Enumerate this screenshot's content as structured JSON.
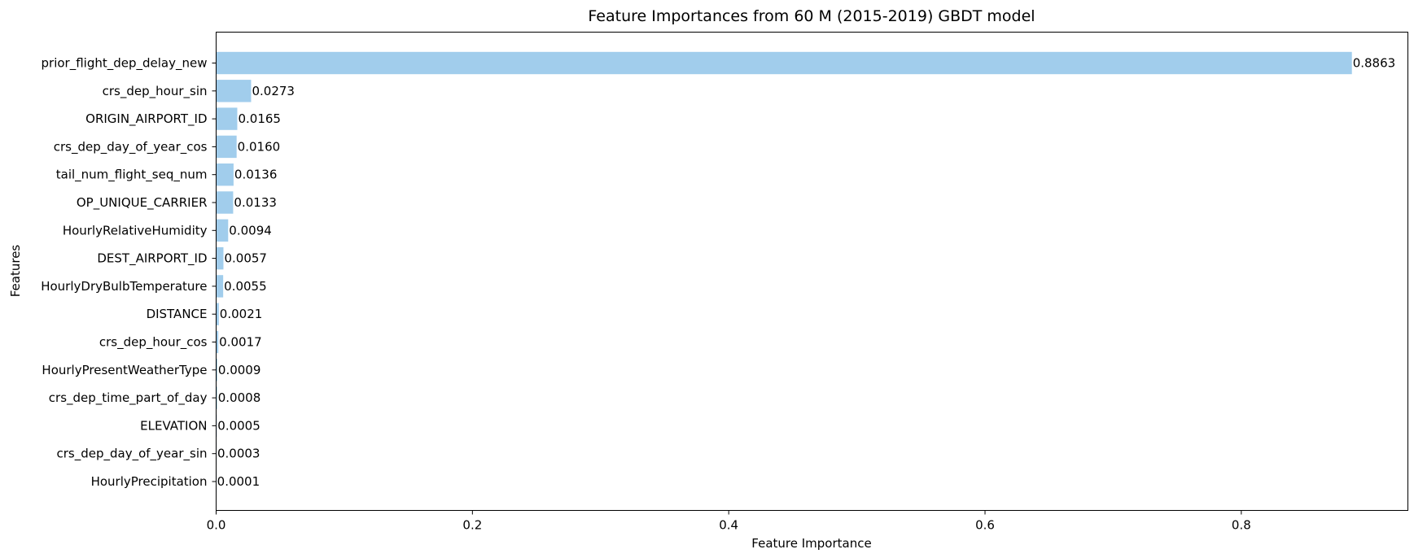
{
  "chart_data": {
    "type": "bar",
    "orientation": "horizontal",
    "title": "Feature Importances from 60 M (2015-2019) GBDT model",
    "xlabel": "Feature Importance",
    "ylabel": "Features",
    "categories": [
      "prior_flight_dep_delay_new",
      "crs_dep_hour_sin",
      "ORIGIN_AIRPORT_ID",
      "crs_dep_day_of_year_cos",
      "tail_num_flight_seq_num",
      "OP_UNIQUE_CARRIER",
      "HourlyRelativeHumidity",
      "DEST_AIRPORT_ID",
      "HourlyDryBulbTemperature",
      "DISTANCE",
      "crs_dep_hour_cos",
      "HourlyPresentWeatherType",
      "crs_dep_time_part_of_day",
      "ELEVATION",
      "crs_dep_day_of_year_sin",
      "HourlyPrecipitation"
    ],
    "values": [
      0.8863,
      0.0273,
      0.0165,
      0.016,
      0.0136,
      0.0133,
      0.0094,
      0.0057,
      0.0055,
      0.0021,
      0.0017,
      0.0009,
      0.0008,
      0.0005,
      0.0003,
      0.0001
    ],
    "value_labels": [
      "0.8863",
      "0.0273",
      "0.0165",
      "0.0160",
      "0.0136",
      "0.0133",
      "0.0094",
      "0.0057",
      "0.0055",
      "0.0021",
      "0.0017",
      "0.0009",
      "0.0008",
      "0.0005",
      "0.0003",
      "0.0001"
    ],
    "xlim": [
      0,
      0.93
    ],
    "xticks": [
      0,
      0.2,
      0.4,
      0.6,
      0.8
    ],
    "xtick_labels": [
      "0.0",
      "0.2",
      "0.4",
      "0.6",
      "0.8"
    ],
    "grid": false,
    "bar_color": "#a1cdec"
  }
}
